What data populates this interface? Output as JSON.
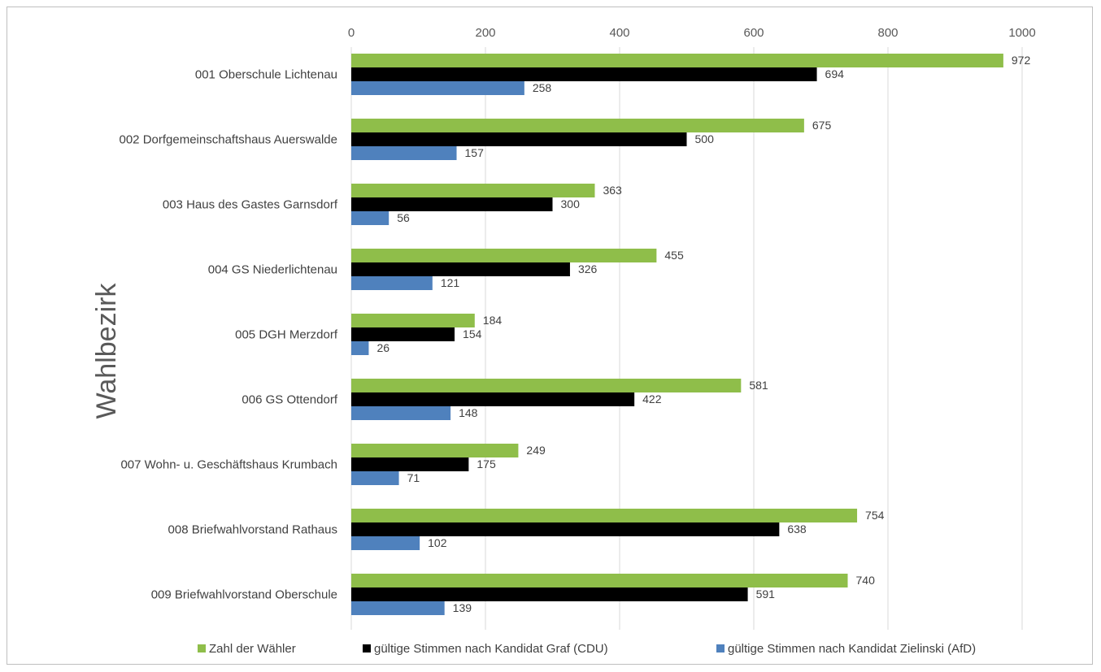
{
  "chart_data": {
    "type": "bar",
    "orientation": "horizontal",
    "title": "",
    "ylabel": "Wahlbezirk",
    "xlabel": "",
    "xlim": [
      0,
      1000
    ],
    "xticks": [
      0,
      200,
      400,
      600,
      800,
      1000
    ],
    "x_axis_position": "top",
    "grid": true,
    "legend_position": "bottom",
    "categories": [
      "001 Oberschule Lichtenau",
      "002 Dorfgemeinschaftshaus Auerswalde",
      "003 Haus des Gastes Garnsdorf",
      "004 GS Niederlichtenau",
      "005 DGH Merzdorf",
      "006 GS Ottendorf",
      "007 Wohn- u. Geschäftshaus Krumbach",
      "008 Briefwahlvorstand Rathaus",
      "009 Briefwahlvorstand Oberschule"
    ],
    "series": [
      {
        "name": "Zahl der Wähler",
        "color": "#8fbe4a",
        "values": [
          972,
          675,
          363,
          455,
          184,
          581,
          249,
          754,
          740
        ]
      },
      {
        "name": "gültige Stimmen nach Kandidat Graf (CDU)",
        "color": "#000000",
        "values": [
          694,
          500,
          300,
          326,
          154,
          422,
          175,
          638,
          591
        ]
      },
      {
        "name": "gültige Stimmen nach Kandidat Zielinski (AfD)",
        "color": "#4f81bd",
        "values": [
          258,
          157,
          56,
          121,
          26,
          148,
          71,
          102,
          139
        ]
      }
    ]
  }
}
